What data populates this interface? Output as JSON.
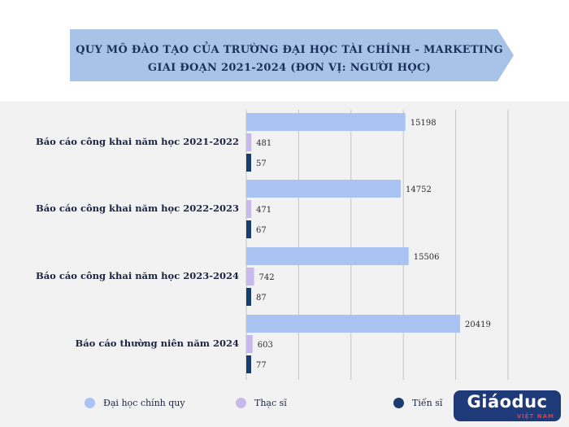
{
  "banner": {
    "title_line_1": "QUY MÔ ĐÀO TẠO CỦA TRƯỜNG ĐẠI HỌC TÀI CHÍNH - MARKETING",
    "title_line_2": "GIAI ĐOẠN 2021-2024 (ĐƠN VỊ: NGƯỜI HỌC)"
  },
  "colors": {
    "banner_fill": "#a9c3e8",
    "banner_stroke": "#c4d6f0",
    "panel_bg": "#f2f2f2",
    "gridline": "#c4c4c4",
    "label_text": "#1b2440"
  },
  "chart_data": {
    "type": "bar",
    "orientation": "horizontal",
    "title": "QUY MÔ ĐÀO TẠO CỦA TRƯỜNG ĐẠI HỌC TÀI CHÍNH - MARKETING GIAI ĐOẠN 2021-2024 (ĐƠN VỊ: NGƯỜI HỌC)",
    "categories": [
      "Báo cáo công khai năm học 2021-2022",
      "Báo cáo công khai năm học 2022-2023",
      "Báo cáo công khai năm học 2023-2024",
      "Báo cáo thường niên năm 2024"
    ],
    "series": [
      {
        "name": "Đại học chính quy",
        "color": "#a9c3f2",
        "values": [
          15198,
          14752,
          15506,
          20419
        ]
      },
      {
        "name": "Thạc sĩ",
        "color": "#c7b8ee",
        "values": [
          481,
          471,
          742,
          603
        ]
      },
      {
        "name": "Tiến sĩ",
        "color": "#173d6e",
        "values": [
          57,
          67,
          87,
          77
        ]
      }
    ],
    "xlim": [
      0,
      25000
    ],
    "grid": true,
    "legend_position": "bottom"
  },
  "logo": {
    "main": "Giáoduc",
    "sub": "VIỆT NAM"
  }
}
